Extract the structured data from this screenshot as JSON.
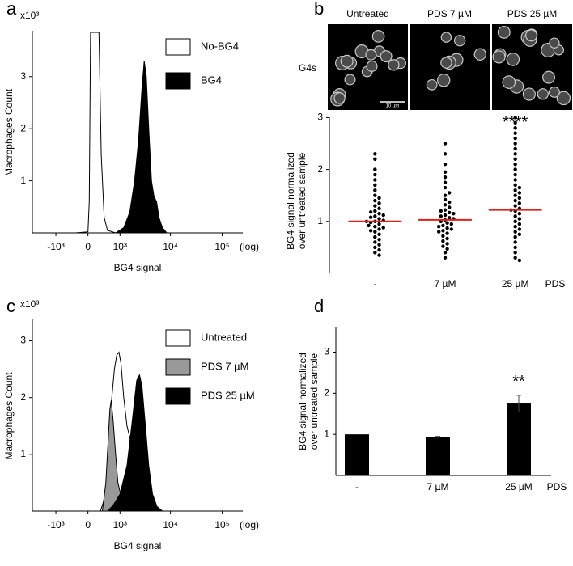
{
  "chart_data": [
    {
      "type": "area",
      "label": "a",
      "y_unit": "x10³",
      "y_label": "Macrophages Count",
      "x_label": "BG4 signal",
      "x_scale_note": "(log)",
      "xscale": "asinh",
      "xlim": [
        -3000,
        250000
      ],
      "xticks": [
        {
          "value": -1000,
          "label": "-10³"
        },
        0,
        {
          "value": 1000,
          "label": "10³"
        },
        {
          "value": 10000,
          "label": "10⁴"
        },
        {
          "value": 100000,
          "label": "10⁵"
        }
      ],
      "ylim": [
        0,
        3.85
      ],
      "yticks": [
        1,
        2,
        3
      ],
      "legend": "top-right",
      "series": [
        {
          "name": "No-BG4",
          "color": "#ffffff",
          "x": [
            -300,
            0,
            30,
            60,
            120,
            200,
            260,
            320,
            400,
            500,
            800
          ],
          "values": [
            0,
            0.02,
            0.6,
            3.85,
            3.85,
            3.85,
            3.85,
            1.5,
            0.3,
            0.05,
            0
          ]
        },
        {
          "name": "BG4",
          "color": "#000000",
          "x": [
            800,
            1200,
            1600,
            2000,
            2400,
            2800,
            3100,
            3400,
            3800,
            4300,
            4800,
            5400,
            6000,
            7000,
            8500
          ],
          "values": [
            0,
            0.1,
            0.4,
            1.0,
            1.8,
            2.8,
            3.3,
            3.0,
            2.0,
            1.0,
            0.7,
            0.6,
            0.3,
            0.1,
            0
          ]
        }
      ]
    },
    {
      "type": "dotplot",
      "label": "b",
      "images": {
        "row_label": "G4s",
        "columns": [
          "Untreated",
          "PDS 7 µM",
          "PDS 25 µM"
        ],
        "scale_bar": "10 µm"
      },
      "y_label": [
        "BG4 signal normalized",
        "over untreated sample"
      ],
      "x_label": "PDS",
      "categories": [
        "-",
        "7 µM",
        "25 µM"
      ],
      "ylim": [
        0,
        3.1
      ],
      "yticks": [
        1,
        2,
        3
      ],
      "color": "#000000",
      "median_color": "#e0201b",
      "points": [
        [
          1.0,
          0.95,
          1.05,
          1.1,
          0.9,
          0.85,
          1.15,
          1.2,
          0.8,
          1.25,
          0.75,
          1.3,
          0.7,
          1.35,
          0.65,
          1.4,
          0.6,
          1.45,
          0.55,
          1.5,
          0.5,
          1.6,
          0.45,
          1.7,
          1.8,
          1.9,
          2.0,
          2.2,
          2.3,
          0.98,
          1.02,
          1.08,
          0.92,
          1.12,
          0.88,
          1.18,
          0.82,
          0.4,
          0.35,
          1.0
        ],
        [
          1.03,
          0.97,
          1.07,
          1.12,
          0.92,
          0.87,
          1.17,
          1.22,
          0.82,
          1.27,
          0.77,
          1.32,
          0.72,
          1.37,
          0.67,
          1.42,
          0.62,
          1.5,
          0.57,
          1.55,
          0.52,
          1.65,
          0.47,
          1.75,
          1.85,
          1.95,
          2.1,
          2.3,
          2.5,
          1.0,
          1.05,
          0.95,
          1.1,
          0.9,
          1.15,
          0.85,
          0.8,
          0.4,
          0.3,
          1.2
        ],
        [
          1.2,
          1.1,
          1.3,
          1.0,
          1.4,
          0.9,
          1.5,
          0.8,
          1.6,
          0.7,
          1.7,
          0.6,
          1.8,
          0.5,
          1.9,
          0.4,
          2.0,
          0.3,
          2.1,
          0.25,
          2.2,
          2.3,
          2.4,
          2.5,
          2.6,
          2.7,
          2.8,
          2.9,
          3.0,
          1.15,
          1.25,
          1.05,
          1.35,
          0.95,
          1.45,
          0.85,
          1.55,
          0.75,
          1.65,
          1.22
        ]
      ],
      "medians": [
        1.0,
        1.03,
        1.22
      ],
      "significance": [
        null,
        null,
        "****"
      ]
    },
    {
      "type": "area",
      "label": "c",
      "y_unit": "x10³",
      "y_label": "Macrophages Count",
      "x_label": "BG4 signal",
      "x_scale_note": "(log)",
      "xscale": "asinh",
      "xlim": [
        -3000,
        250000
      ],
      "xticks": [
        {
          "value": -1000,
          "label": "-10³"
        },
        0,
        {
          "value": 1000,
          "label": "10³"
        },
        {
          "value": 10000,
          "label": "10⁴"
        },
        {
          "value": 100000,
          "label": "10⁵"
        }
      ],
      "ylim": [
        0,
        3.35
      ],
      "yticks": [
        1,
        2,
        3
      ],
      "legend": "top-right",
      "series": [
        {
          "name": "Untreated",
          "color": "#ffffff",
          "x": [
            300,
            450,
            550,
            650,
            750,
            850,
            950,
            1050,
            1200,
            1400,
            1700,
            2000,
            2500,
            3200,
            4000
          ],
          "values": [
            0,
            0.3,
            1.2,
            2.0,
            2.5,
            2.75,
            2.8,
            2.6,
            2.0,
            1.5,
            1.2,
            0.8,
            0.3,
            0.05,
            0
          ]
        },
        {
          "name": "PDS 7 µM",
          "color": "#999999",
          "x": [
            350,
            450,
            520,
            580,
            630,
            700,
            800,
            900,
            1100,
            1400,
            2000
          ],
          "values": [
            0,
            0.5,
            1.2,
            1.8,
            1.95,
            1.6,
            1.0,
            0.5,
            0.2,
            0.05,
            0
          ]
        },
        {
          "name": "PDS 25 µM",
          "color": "#000000",
          "x": [
            500,
            700,
            1000,
            1400,
            1800,
            2200,
            2500,
            2800,
            3200,
            3800,
            4500,
            5500,
            7000
          ],
          "values": [
            0,
            0.1,
            0.3,
            0.8,
            1.6,
            2.3,
            2.4,
            2.2,
            1.6,
            0.8,
            0.3,
            0.08,
            0
          ]
        }
      ]
    },
    {
      "type": "bar",
      "label": "d",
      "y_label": [
        "BG4 signal normalized",
        "over untreated sample"
      ],
      "x_label": "PDS",
      "categories": [
        "-",
        "7 µM",
        "25 µM"
      ],
      "values": [
        1.0,
        0.93,
        1.75
      ],
      "errors": [
        null,
        0.02,
        0.2
      ],
      "color": "#000000",
      "ylim": [
        0,
        3.6
      ],
      "yticks": [
        1,
        2,
        3
      ],
      "significance": [
        null,
        null,
        "**"
      ]
    }
  ]
}
